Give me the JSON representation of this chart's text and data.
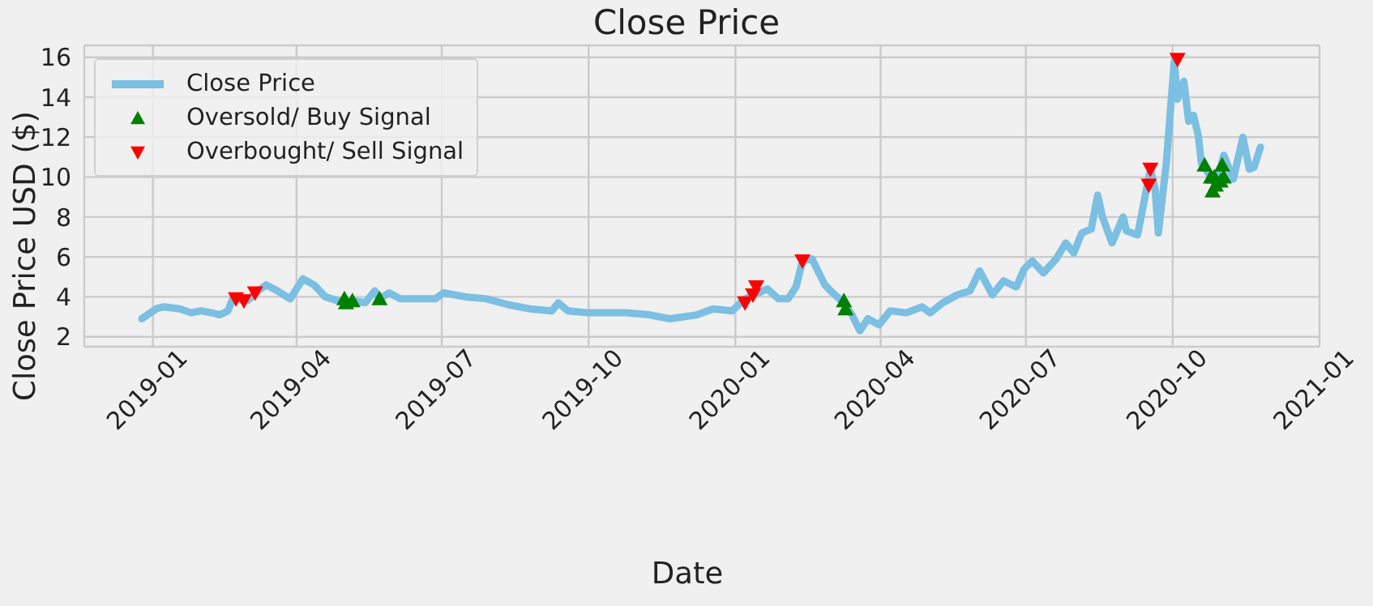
{
  "chart_data": {
    "type": "line",
    "title": "Close Price",
    "xlabel": "Date",
    "ylabel": "Close Price USD ($)",
    "xlim": [
      "2018-11-19",
      "2021-01-01"
    ],
    "ylim": [
      1.5,
      16.6
    ],
    "xticks": [
      "2019-01",
      "2019-04",
      "2019-07",
      "2019-10",
      "2020-01",
      "2020-04",
      "2020-07",
      "2020-10",
      "2021-01"
    ],
    "yticks": [
      2,
      4,
      6,
      8,
      10,
      12,
      14,
      16
    ],
    "grid": true,
    "legend": "top left",
    "series": [
      {
        "name": "Close Price",
        "color": "#7bbfe2",
        "marker": "none",
        "line_style": "solid",
        "x": [
          "2018-12-25",
          "2019-01-03",
          "2019-01-08",
          "2019-01-18",
          "2019-01-25",
          "2019-01-31",
          "2019-02-07",
          "2019-02-12",
          "2019-02-17",
          "2019-02-20",
          "2019-03-01",
          "2019-03-08",
          "2019-03-13",
          "2019-03-20",
          "2019-03-28",
          "2019-04-05",
          "2019-04-12",
          "2019-04-19",
          "2019-04-27",
          "2019-05-07",
          "2019-05-14",
          "2019-05-20",
          "2019-05-23",
          "2019-05-29",
          "2019-06-05",
          "2019-06-19",
          "2019-06-27",
          "2019-07-02",
          "2019-07-16",
          "2019-07-29",
          "2019-08-12",
          "2019-08-25",
          "2019-09-08",
          "2019-09-12",
          "2019-09-18",
          "2019-10-01",
          "2019-10-25",
          "2019-11-08",
          "2019-11-21",
          "2019-12-08",
          "2019-12-18",
          "2019-12-30",
          "2020-01-07",
          "2020-01-21",
          "2020-01-28",
          "2020-02-03",
          "2020-02-08",
          "2020-02-12",
          "2020-02-18",
          "2020-02-26",
          "2020-03-02",
          "2020-03-09",
          "2020-03-14",
          "2020-03-19",
          "2020-03-24",
          "2020-03-31",
          "2020-04-07",
          "2020-04-17",
          "2020-04-27",
          "2020-05-02",
          "2020-05-10",
          "2020-05-19",
          "2020-05-27",
          "2020-06-02",
          "2020-06-10",
          "2020-06-17",
          "2020-06-25",
          "2020-06-30",
          "2020-07-05",
          "2020-07-12",
          "2020-07-20",
          "2020-07-26",
          "2020-07-31",
          "2020-08-05",
          "2020-08-11",
          "2020-08-15",
          "2020-08-18",
          "2020-08-24",
          "2020-08-31",
          "2020-09-02",
          "2020-09-09",
          "2020-09-17",
          "2020-09-20",
          "2020-09-22",
          "2020-09-27",
          "2020-10-02",
          "2020-10-04",
          "2020-10-08",
          "2020-10-11",
          "2020-10-14",
          "2020-10-17",
          "2020-10-19",
          "2020-10-26",
          "2020-10-28",
          "2020-11-02",
          "2020-11-08",
          "2020-11-14",
          "2020-11-18",
          "2020-11-21",
          "2020-11-25"
        ],
        "values": [
          2.9,
          3.4,
          3.5,
          3.4,
          3.2,
          3.3,
          3.2,
          3.1,
          3.3,
          3.9,
          3.8,
          4.3,
          4.6,
          4.3,
          3.9,
          4.9,
          4.6,
          4.0,
          3.8,
          3.8,
          3.7,
          4.3,
          3.9,
          4.2,
          3.9,
          3.9,
          3.9,
          4.2,
          4.0,
          3.9,
          3.6,
          3.4,
          3.3,
          3.7,
          3.3,
          3.2,
          3.2,
          3.1,
          2.9,
          3.1,
          3.4,
          3.3,
          3.9,
          4.4,
          3.9,
          3.9,
          4.5,
          5.8,
          5.9,
          4.6,
          4.2,
          3.7,
          3.1,
          2.3,
          2.9,
          2.6,
          3.3,
          3.2,
          3.5,
          3.2,
          3.7,
          4.1,
          4.3,
          5.3,
          4.1,
          4.8,
          4.5,
          5.4,
          5.8,
          5.2,
          5.9,
          6.7,
          6.2,
          7.2,
          7.4,
          9.1,
          8.0,
          6.7,
          8.0,
          7.3,
          7.1,
          10.4,
          9.4,
          7.2,
          10.7,
          15.8,
          13.9,
          14.8,
          12.8,
          13.1,
          12.1,
          10.7,
          9.9,
          9.5,
          11.1,
          9.9,
          12.0,
          10.4,
          10.5,
          11.5
        ]
      },
      {
        "name": "Oversold/ Buy Signal",
        "type": "scatter",
        "color": "#008000",
        "marker": "triangle",
        "x": [
          "2019-05-01",
          "2019-05-02",
          "2019-05-06",
          "2019-05-23",
          "2020-03-09",
          "2020-03-10",
          "2020-10-21",
          "2020-10-25",
          "2020-10-26",
          "2020-10-27",
          "2020-10-28",
          "2020-10-31",
          "2020-11-01",
          "2020-11-02"
        ],
        "values": [
          3.9,
          3.7,
          3.8,
          3.9,
          3.8,
          3.4,
          10.6,
          10.0,
          9.3,
          10.0,
          9.6,
          9.8,
          10.6,
          10.0
        ]
      },
      {
        "name": "Overbought/ Sell Signal",
        "type": "scatter",
        "color": "#ff0000",
        "marker": "triangle-down",
        "x": [
          "2019-02-22",
          "2019-02-27",
          "2019-03-06",
          "2020-01-07",
          "2020-01-12",
          "2020-01-14",
          "2020-02-12",
          "2020-09-16",
          "2020-09-17",
          "2020-10-04"
        ],
        "values": [
          3.9,
          3.8,
          4.2,
          3.7,
          4.1,
          4.5,
          5.8,
          9.6,
          10.4,
          15.9
        ]
      }
    ]
  }
}
